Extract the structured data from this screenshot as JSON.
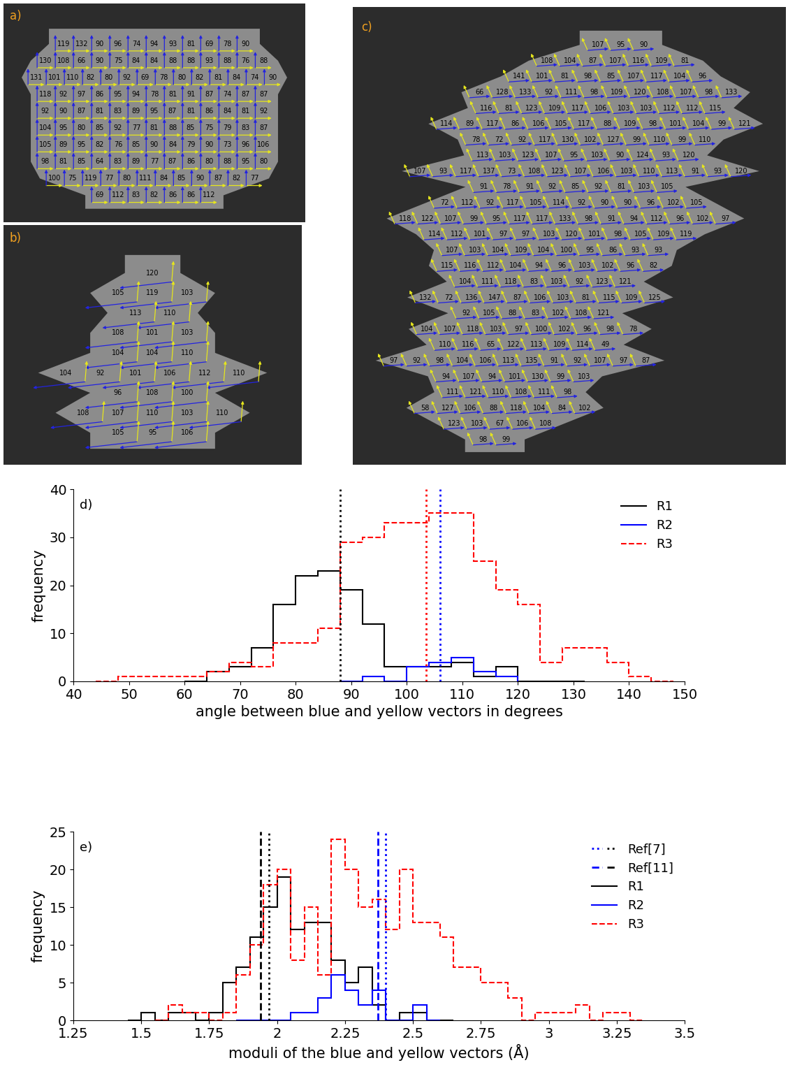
{
  "chart_data": [
    {
      "type": "vector_map",
      "panel_label": "a)",
      "values": [
        [
          119,
          132,
          90,
          96,
          74,
          94,
          93,
          81,
          69,
          78,
          90
        ],
        [
          130,
          108,
          66,
          90,
          75,
          84,
          84,
          88,
          88,
          93,
          88,
          76,
          88
        ],
        [
          131,
          101,
          110,
          82,
          80,
          92,
          69,
          78,
          80,
          82,
          81,
          84,
          74,
          90
        ],
        [
          118,
          92,
          97,
          86,
          95,
          94,
          78,
          81,
          91,
          87,
          74,
          87,
          87
        ],
        [
          92,
          90,
          87,
          81,
          83,
          89,
          95,
          87,
          81,
          86,
          84,
          81,
          92
        ],
        [
          104,
          95,
          80,
          85,
          92,
          77,
          81,
          88,
          85,
          75,
          79,
          83,
          87
        ],
        [
          105,
          89,
          95,
          82,
          76,
          85,
          90,
          84,
          79,
          90,
          73,
          96,
          106
        ],
        [
          98,
          81,
          85,
          64,
          83,
          89,
          77,
          87,
          86,
          80,
          88,
          95,
          80
        ],
        [
          100,
          75,
          119,
          77,
          80,
          111,
          84,
          85,
          90,
          87,
          82,
          77
        ],
        [
          69,
          112,
          83,
          82,
          86,
          86,
          112
        ]
      ]
    },
    {
      "type": "vector_map",
      "panel_label": "b)",
      "values": [
        [
          120
        ],
        [
          105,
          119,
          103
        ],
        [
          113,
          110
        ],
        [
          108,
          101,
          103
        ],
        [
          104,
          104,
          110
        ],
        [
          104,
          92,
          101,
          106,
          112,
          110
        ],
        [
          96,
          108,
          100
        ],
        [
          108,
          107,
          110,
          103,
          110
        ],
        [
          105,
          95,
          106
        ]
      ]
    },
    {
      "type": "vector_map",
      "panel_label": "c)",
      "values": [
        [
          107,
          95,
          90
        ],
        [
          108,
          104,
          87,
          107,
          116,
          109,
          81
        ],
        [
          141,
          101,
          81,
          98,
          85,
          107,
          117,
          104,
          96
        ],
        [
          66,
          128,
          133,
          92,
          111,
          98,
          109,
          120,
          108,
          107,
          98,
          133
        ],
        [
          116,
          81,
          123,
          109,
          117,
          106,
          103,
          103,
          112,
          112,
          115
        ],
        [
          114,
          89,
          117,
          86,
          106,
          105,
          117,
          88,
          109,
          98,
          101,
          104,
          99,
          121
        ],
        [
          78,
          72,
          92,
          117,
          130,
          102,
          127,
          99,
          110,
          99,
          110
        ],
        [
          113,
          103,
          123,
          107,
          95,
          103,
          90,
          124,
          93,
          120
        ],
        [
          107,
          93,
          117,
          137,
          73,
          108,
          123,
          107,
          106,
          103,
          110,
          113,
          91,
          93,
          120
        ],
        [
          91,
          78,
          91,
          92,
          85,
          92,
          81,
          103,
          105
        ],
        [
          72,
          112,
          92,
          117,
          105,
          114,
          92,
          90,
          90,
          96,
          102,
          105
        ],
        [
          118,
          122,
          107,
          99,
          95,
          117,
          117,
          133,
          98,
          91,
          94,
          112,
          96,
          102,
          97
        ],
        [
          114,
          112,
          101,
          97,
          97,
          103,
          120,
          101,
          98,
          105,
          109,
          119
        ],
        [
          107,
          103,
          104,
          109,
          104,
          100,
          95,
          86,
          93,
          93
        ],
        [
          115,
          116,
          112,
          104,
          94,
          96,
          103,
          102,
          96,
          82
        ],
        [
          104,
          111,
          118,
          83,
          103,
          92,
          123,
          121
        ],
        [
          132,
          72,
          136,
          147,
          87,
          106,
          103,
          81,
          115,
          109,
          125
        ],
        [
          92,
          105,
          88,
          83,
          102,
          108,
          121
        ],
        [
          104,
          107,
          118,
          103,
          97,
          100,
          102,
          96,
          98,
          78
        ],
        [
          110,
          116,
          65,
          122,
          113,
          109,
          114,
          49
        ],
        [
          97,
          92,
          98,
          104,
          106,
          113,
          135,
          91,
          92,
          107,
          97,
          87
        ],
        [
          94,
          107,
          94,
          101,
          130,
          99,
          103
        ],
        [
          111,
          121,
          110,
          108,
          111,
          98
        ],
        [
          58,
          127,
          106,
          88,
          118,
          104,
          84,
          102
        ],
        [
          123,
          103,
          67,
          106,
          108
        ],
        [
          98,
          99
        ]
      ]
    },
    {
      "type": "histogram",
      "panel_label": "d)",
      "xlabel": "angle between blue and yellow vectors in degrees",
      "ylabel": "frequency",
      "xlim": [
        40,
        150
      ],
      "xticks": [
        40,
        50,
        60,
        70,
        80,
        90,
        100,
        110,
        120,
        130,
        140,
        150
      ],
      "ylim": [
        0,
        40
      ],
      "yticks": [
        0,
        10,
        20,
        30,
        40
      ],
      "legend": "upper right",
      "reference_lines": [
        {
          "line_style": "dotted",
          "values": [
            88,
            103.5,
            106
          ],
          "colors": [
            "#000000",
            "#ff0000",
            "#0000ff"
          ]
        }
      ],
      "series": [
        {
          "name": "R1",
          "color": "#000000",
          "line_style": "solid",
          "bins": [
            60,
            64,
            68,
            72,
            76,
            80,
            84,
            88,
            92,
            96,
            100,
            104,
            108,
            112,
            116,
            120,
            124,
            128,
            132
          ],
          "counts": [
            0,
            2,
            3,
            7,
            16,
            22,
            23,
            19,
            12,
            3,
            3,
            3,
            4,
            1,
            3,
            0,
            0,
            0
          ]
        },
        {
          "name": "R2",
          "color": "#0000ff",
          "line_style": "solid",
          "bins": [
            88,
            92,
            96,
            100,
            104,
            108,
            112,
            116,
            120
          ],
          "counts": [
            0,
            1,
            0,
            3,
            4,
            5,
            2,
            1
          ]
        },
        {
          "name": "R3",
          "color": "#ff0000",
          "line_style": "dashed",
          "bins": [
            44,
            48,
            52,
            56,
            60,
            64,
            68,
            72,
            76,
            80,
            84,
            88,
            92,
            96,
            100,
            104,
            108,
            112,
            116,
            120,
            124,
            128,
            132,
            136,
            140,
            144,
            148
          ],
          "counts": [
            0,
            1,
            1,
            1,
            1,
            2,
            4,
            3,
            8,
            8,
            11,
            29,
            30,
            33,
            33,
            35,
            35,
            25,
            19,
            16,
            4,
            7,
            7,
            4,
            1,
            0
          ]
        }
      ]
    },
    {
      "type": "histogram",
      "panel_label": "e)",
      "xlabel": "moduli of the blue and yellow vectors (Å)",
      "ylabel": "frequency",
      "xlim": [
        1.25,
        3.5
      ],
      "xticks": [
        1.25,
        1.5,
        1.75,
        2,
        2.25,
        2.5,
        2.75,
        3,
        3.25,
        3.5
      ],
      "ylim": [
        0,
        25
      ],
      "yticks": [
        0,
        5,
        10,
        15,
        20,
        25
      ],
      "legend": "upper right",
      "reference_lines": [
        {
          "name": "Ref[7]",
          "line_style": "dotted",
          "values": [
            2.4,
            1.97
          ],
          "colors": [
            "#0000ff",
            "#000000"
          ]
        },
        {
          "name": "Ref[11]",
          "line_style": "dashed",
          "values": [
            2.37,
            1.94
          ],
          "colors": [
            "#0000ff",
            "#000000"
          ]
        }
      ],
      "series": [
        {
          "name": "R1",
          "color": "#000000",
          "line_style": "solid",
          "bins": [
            1.45,
            1.5,
            1.55,
            1.6,
            1.65,
            1.7,
            1.75,
            1.8,
            1.85,
            1.9,
            1.95,
            2.0,
            2.05,
            2.1,
            2.15,
            2.2,
            2.25,
            2.3,
            2.35,
            2.4,
            2.45,
            2.5,
            2.55,
            2.6,
            2.65
          ],
          "counts": [
            0,
            1,
            0,
            1,
            1,
            0,
            1,
            5,
            7,
            11,
            15,
            19,
            12,
            13,
            13,
            8,
            5,
            7,
            2,
            0,
            1,
            1,
            0,
            0
          ]
        },
        {
          "name": "R2",
          "color": "#0000ff",
          "line_style": "solid",
          "bins": [
            1.85,
            1.9,
            1.95,
            2.0,
            2.05,
            2.1,
            2.15,
            2.2,
            2.25,
            2.3,
            2.35,
            2.4,
            2.45,
            2.5,
            2.55,
            2.6
          ],
          "counts": [
            0,
            0,
            0,
            0,
            1,
            1,
            3,
            6,
            4,
            2,
            4,
            0,
            0,
            2,
            0
          ]
        },
        {
          "name": "R3",
          "color": "#ff0000",
          "line_style": "dashed",
          "bins": [
            1.55,
            1.6,
            1.65,
            1.7,
            1.75,
            1.8,
            1.85,
            1.9,
            1.95,
            2.0,
            2.05,
            2.1,
            2.15,
            2.2,
            2.25,
            2.3,
            2.35,
            2.4,
            2.45,
            2.5,
            2.55,
            2.6,
            2.65,
            2.7,
            2.75,
            2.8,
            2.85,
            2.9,
            2.95,
            3.0,
            3.05,
            3.1,
            3.15,
            3.2,
            3.25,
            3.3,
            3.35
          ],
          "counts": [
            0,
            2,
            1,
            1,
            0,
            1,
            6,
            10,
            18,
            20,
            8,
            15,
            6,
            24,
            20,
            15,
            16,
            12,
            20,
            13,
            13,
            11,
            7,
            7,
            5,
            5,
            3,
            0,
            1,
            1,
            1,
            2,
            0,
            1,
            1,
            0
          ]
        }
      ]
    }
  ]
}
